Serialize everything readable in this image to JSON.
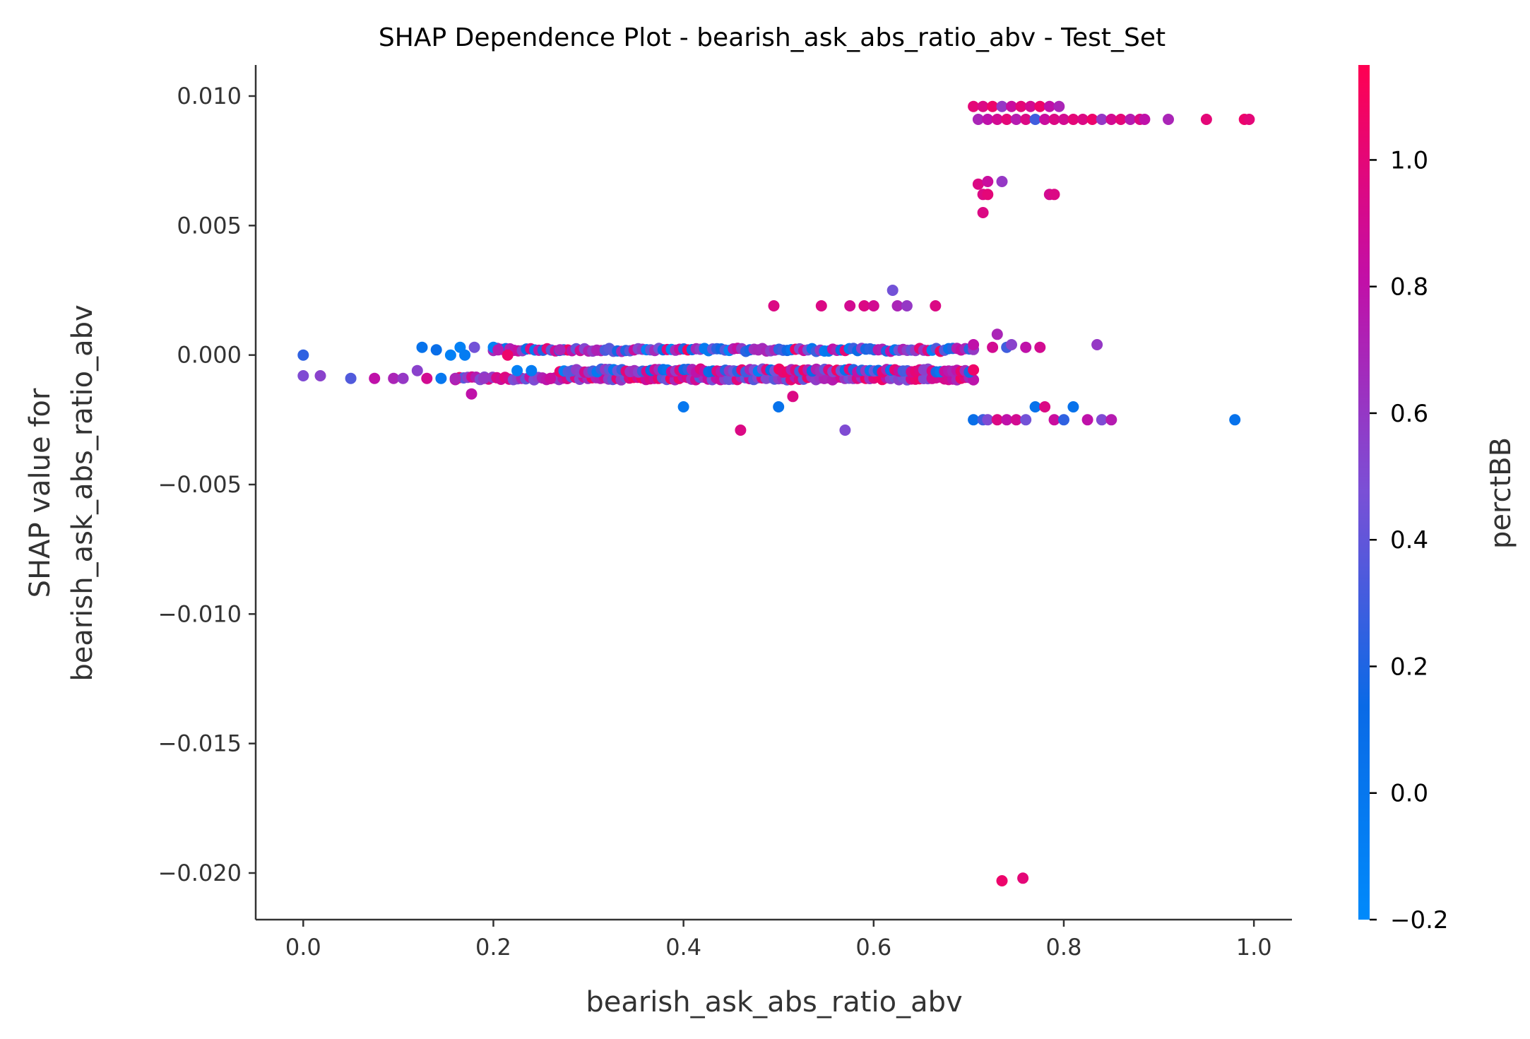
{
  "chart_data": {
    "type": "scatter",
    "title": "SHAP Dependence Plot - bearish_ask_abs_ratio_abv - Test_Set",
    "xlabel": "bearish_ask_abs_ratio_abv",
    "ylabel_line1": "SHAP value for",
    "ylabel_line2": "bearish_ask_abs_ratio_abv",
    "colorbar_label": "perctBB",
    "xlim": [
      -0.05,
      1.04
    ],
    "ylim": [
      -0.0218,
      0.0112
    ],
    "xticks": [
      0.0,
      0.2,
      0.4,
      0.6,
      0.8,
      1.0
    ],
    "xtick_labels": [
      "0.0",
      "0.2",
      "0.4",
      "0.6",
      "0.8",
      "1.0"
    ],
    "yticks": [
      0.01,
      0.005,
      0.0,
      -0.005,
      -0.01,
      -0.015,
      -0.02
    ],
    "ytick_labels": [
      "0.010",
      "0.005",
      "0.000",
      "−0.005",
      "−0.010",
      "−0.015",
      "−0.020"
    ],
    "colorbar_range": [
      -0.2,
      1.15
    ],
    "colorbar_ticks": [
      1.0,
      0.8,
      0.6,
      0.4,
      0.2,
      0.0,
      -0.2
    ],
    "colorbar_tick_labels": [
      "1.0",
      "0.8",
      "0.6",
      "0.4",
      "0.2",
      "0.0",
      "−0.2"
    ],
    "colormap": [
      "#008afb",
      "#ff0052"
    ],
    "grid": false,
    "points": [
      [
        0.0,
        0.0,
        0.25
      ],
      [
        0.0,
        -0.0008,
        0.5
      ],
      [
        0.018,
        -0.0008,
        0.55
      ],
      [
        0.05,
        -0.0009,
        0.35
      ],
      [
        0.075,
        -0.0009,
        0.8
      ],
      [
        0.095,
        -0.0009,
        0.7
      ],
      [
        0.105,
        -0.0009,
        0.6
      ],
      [
        0.12,
        -0.0006,
        0.55
      ],
      [
        0.13,
        -0.0009,
        0.9
      ],
      [
        0.125,
        0.0003,
        0.05
      ],
      [
        0.14,
        0.0002,
        0.1
      ],
      [
        0.145,
        -0.0009,
        0.0
      ],
      [
        0.155,
        0.0,
        -0.1
      ],
      [
        0.16,
        -0.0009,
        0.7
      ],
      [
        0.165,
        0.0003,
        -0.1
      ],
      [
        0.17,
        0.0,
        -0.05
      ],
      [
        0.177,
        -0.0015,
        0.8
      ],
      [
        0.18,
        0.0003,
        0.45
      ],
      [
        0.19,
        -0.0009,
        0.6
      ],
      [
        0.2,
        0.0003,
        -0.1
      ],
      [
        0.205,
        0.0002,
        0.75
      ],
      [
        0.215,
        0.0,
        1.05
      ],
      [
        0.225,
        -0.0006,
        -0.1
      ],
      [
        0.24,
        -0.0006,
        -0.05
      ],
      [
        0.26,
        -0.0009,
        0.85
      ],
      [
        0.27,
        0.0002,
        0.7
      ],
      [
        0.4,
        -0.002,
        0.0
      ],
      [
        0.46,
        -0.0029,
        0.95
      ],
      [
        0.495,
        0.0019,
        0.95
      ],
      [
        0.5,
        -0.002,
        0.05
      ],
      [
        0.515,
        -0.0016,
        0.95
      ],
      [
        0.545,
        0.0019,
        0.95
      ],
      [
        0.57,
        -0.0029,
        0.5
      ],
      [
        0.575,
        0.0019,
        0.9
      ],
      [
        0.59,
        0.0019,
        0.95
      ],
      [
        0.6,
        0.0019,
        0.9
      ],
      [
        0.62,
        0.0025,
        0.45
      ],
      [
        0.625,
        0.0019,
        0.7
      ],
      [
        0.635,
        0.0019,
        0.6
      ],
      [
        0.665,
        0.0019,
        0.95
      ],
      [
        0.71,
        0.0066,
        0.95
      ],
      [
        0.715,
        0.0062,
        0.95
      ],
      [
        0.72,
        0.0067,
        0.85
      ],
      [
        0.72,
        0.0062,
        1.0
      ],
      [
        0.715,
        0.0055,
        0.95
      ],
      [
        0.735,
        0.0067,
        0.6
      ],
      [
        0.785,
        0.0062,
        0.9
      ],
      [
        0.79,
        0.0062,
        0.95
      ],
      [
        0.705,
        0.0004,
        0.8
      ],
      [
        0.73,
        0.0008,
        0.7
      ],
      [
        0.725,
        0.0003,
        0.9
      ],
      [
        0.74,
        0.0003,
        0.3
      ],
      [
        0.745,
        0.0004,
        0.55
      ],
      [
        0.76,
        0.0003,
        0.8
      ],
      [
        0.775,
        0.0003,
        0.9
      ],
      [
        0.835,
        0.0004,
        0.6
      ],
      [
        0.705,
        -0.0025,
        0.1
      ],
      [
        0.715,
        -0.0025,
        0.3
      ],
      [
        0.72,
        -0.0025,
        0.5
      ],
      [
        0.73,
        -0.0025,
        0.95
      ],
      [
        0.74,
        -0.0025,
        0.8
      ],
      [
        0.75,
        -0.0025,
        0.9
      ],
      [
        0.76,
        -0.0025,
        0.45
      ],
      [
        0.77,
        -0.002,
        0.05
      ],
      [
        0.78,
        -0.002,
        0.95
      ],
      [
        0.79,
        -0.0025,
        0.85
      ],
      [
        0.8,
        -0.0025,
        0.25
      ],
      [
        0.81,
        -0.002,
        0.05
      ],
      [
        0.825,
        -0.0025,
        0.8
      ],
      [
        0.84,
        -0.0025,
        0.5
      ],
      [
        0.85,
        -0.0025,
        0.75
      ],
      [
        0.98,
        -0.0025,
        0.05
      ],
      [
        0.735,
        -0.0203,
        1.05
      ],
      [
        0.757,
        -0.0202,
        1.0
      ],
      [
        0.705,
        0.0096,
        1.0
      ],
      [
        0.71,
        0.0091,
        0.7
      ],
      [
        0.715,
        0.0096,
        0.95
      ],
      [
        0.72,
        0.0091,
        0.8
      ],
      [
        0.725,
        0.0096,
        1.05
      ],
      [
        0.73,
        0.0091,
        0.9
      ],
      [
        0.735,
        0.0096,
        0.6
      ],
      [
        0.74,
        0.0091,
        1.0
      ],
      [
        0.745,
        0.0096,
        0.85
      ],
      [
        0.75,
        0.0091,
        0.75
      ],
      [
        0.755,
        0.0096,
        1.0
      ],
      [
        0.76,
        0.0091,
        0.95
      ],
      [
        0.765,
        0.0096,
        0.9
      ],
      [
        0.77,
        0.0091,
        0.3
      ],
      [
        0.775,
        0.0096,
        1.05
      ],
      [
        0.78,
        0.0091,
        0.85
      ],
      [
        0.785,
        0.0096,
        0.8
      ],
      [
        0.79,
        0.0091,
        0.95
      ],
      [
        0.795,
        0.0096,
        0.7
      ],
      [
        0.8,
        0.0091,
        0.9
      ],
      [
        0.81,
        0.0091,
        1.0
      ],
      [
        0.82,
        0.0091,
        0.95
      ],
      [
        0.83,
        0.0091,
        1.05
      ],
      [
        0.84,
        0.0091,
        0.6
      ],
      [
        0.85,
        0.0091,
        0.9
      ],
      [
        0.86,
        0.0091,
        1.0
      ],
      [
        0.87,
        0.0091,
        0.75
      ],
      [
        0.88,
        0.0091,
        0.95
      ],
      [
        0.885,
        0.0091,
        0.8
      ],
      [
        0.91,
        0.0091,
        0.7
      ],
      [
        0.95,
        0.0091,
        1.0
      ],
      [
        0.99,
        0.0091,
        1.05
      ],
      [
        0.995,
        0.0091,
        1.0
      ]
    ],
    "bands": [
      {
        "x_min": 0.2,
        "x_max": 0.705,
        "y": 0.0002,
        "c_min": -0.15,
        "c_max": 1.1
      },
      {
        "x_min": 0.16,
        "x_max": 0.705,
        "y": -0.0009,
        "c_min": 0.35,
        "c_max": 1.1
      },
      {
        "x_min": 0.27,
        "x_max": 0.705,
        "y": -0.0006,
        "c_min": -0.1,
        "c_max": 1.1
      }
    ]
  }
}
